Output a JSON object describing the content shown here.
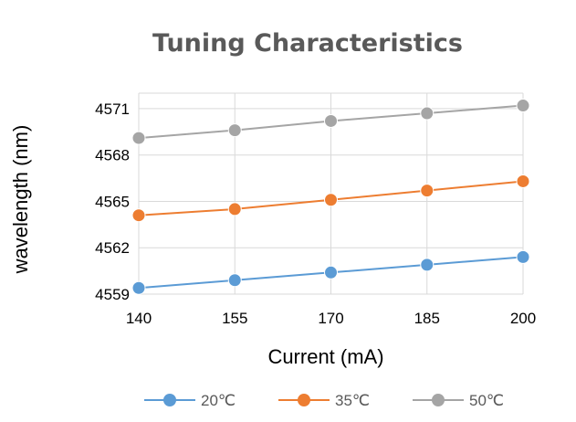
{
  "chart_data": {
    "type": "line",
    "title": "Tuning Characteristics",
    "xlabel": "Current (mA)",
    "ylabel": "wavelength (nm)",
    "categories": [
      "140",
      "155",
      "170",
      "185",
      "200"
    ],
    "x": [
      140,
      155,
      170,
      185,
      200
    ],
    "ylim": [
      4559,
      4572
    ],
    "yticks": [
      "4559",
      "4562",
      "4565",
      "4568",
      "4571"
    ],
    "grid": true,
    "legend_position": "bottom",
    "series": [
      {
        "name": "20℃",
        "color": "#5b9bd5",
        "values": [
          4559.4,
          4559.9,
          4560.4,
          4560.9,
          4561.4
        ]
      },
      {
        "name": "35℃",
        "color": "#ed7d31",
        "values": [
          4564.1,
          4564.5,
          4565.1,
          4565.7,
          4566.3
        ]
      },
      {
        "name": "50℃",
        "color": "#a5a5a5",
        "values": [
          4569.1,
          4569.6,
          4570.2,
          4570.7,
          4571.2
        ]
      }
    ]
  }
}
